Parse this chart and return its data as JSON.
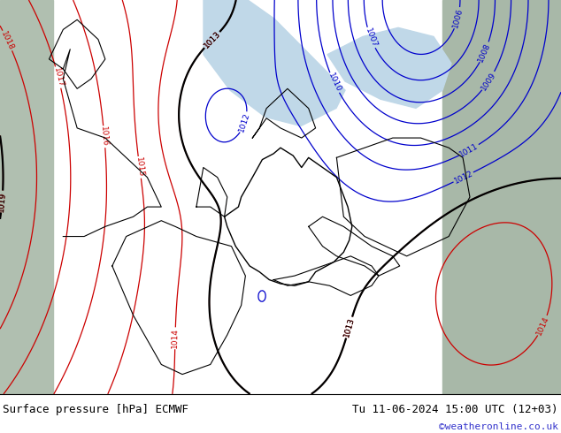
{
  "title_left": "Surface pressure [hPa] ECMWF",
  "title_right": "Tu 11-06-2024 15:00 UTC (12+03)",
  "watermark": "©weatheronline.co.uk",
  "bg_color_land": "#c8e6a0",
  "bg_color_sea_light": "#b8d0e0",
  "bg_color_outer": "#a8b8a8",
  "bottom_bar_bg": "#ffffff",
  "figsize": [
    6.34,
    4.9
  ],
  "dpi": 100,
  "bottom_text_color": "#000000",
  "watermark_color": "#3333cc",
  "font_size_bottom": 9,
  "font_size_watermark": 8,
  "isobar_red_color": "#cc0000",
  "isobar_blue_color": "#0000cc",
  "isobar_black_color": "#000000",
  "border_color": "#444444"
}
